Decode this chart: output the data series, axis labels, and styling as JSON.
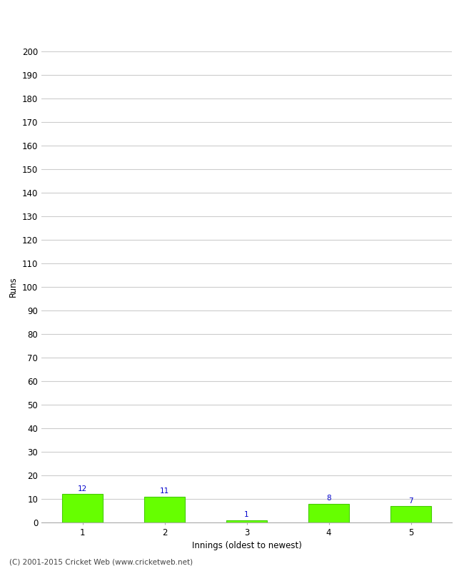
{
  "categories": [
    1,
    2,
    3,
    4,
    5
  ],
  "values": [
    12,
    11,
    1,
    8,
    7
  ],
  "bar_color": "#66ff00",
  "bar_edge_color": "#44cc00",
  "value_label_color": "#0000cc",
  "xlabel": "Innings (oldest to newest)",
  "ylabel": "Runs",
  "ylim": [
    0,
    200
  ],
  "yticks": [
    0,
    10,
    20,
    30,
    40,
    50,
    60,
    70,
    80,
    90,
    100,
    110,
    120,
    130,
    140,
    150,
    160,
    170,
    180,
    190,
    200
  ],
  "grid_color": "#cccccc",
  "background_color": "#ffffff",
  "footer_text": "(C) 2001-2015 Cricket Web (www.cricketweb.net)",
  "value_label_fontsize": 7.5,
  "axis_label_fontsize": 8.5,
  "tick_label_fontsize": 8.5,
  "footer_fontsize": 7.5,
  "bar_width": 0.5
}
